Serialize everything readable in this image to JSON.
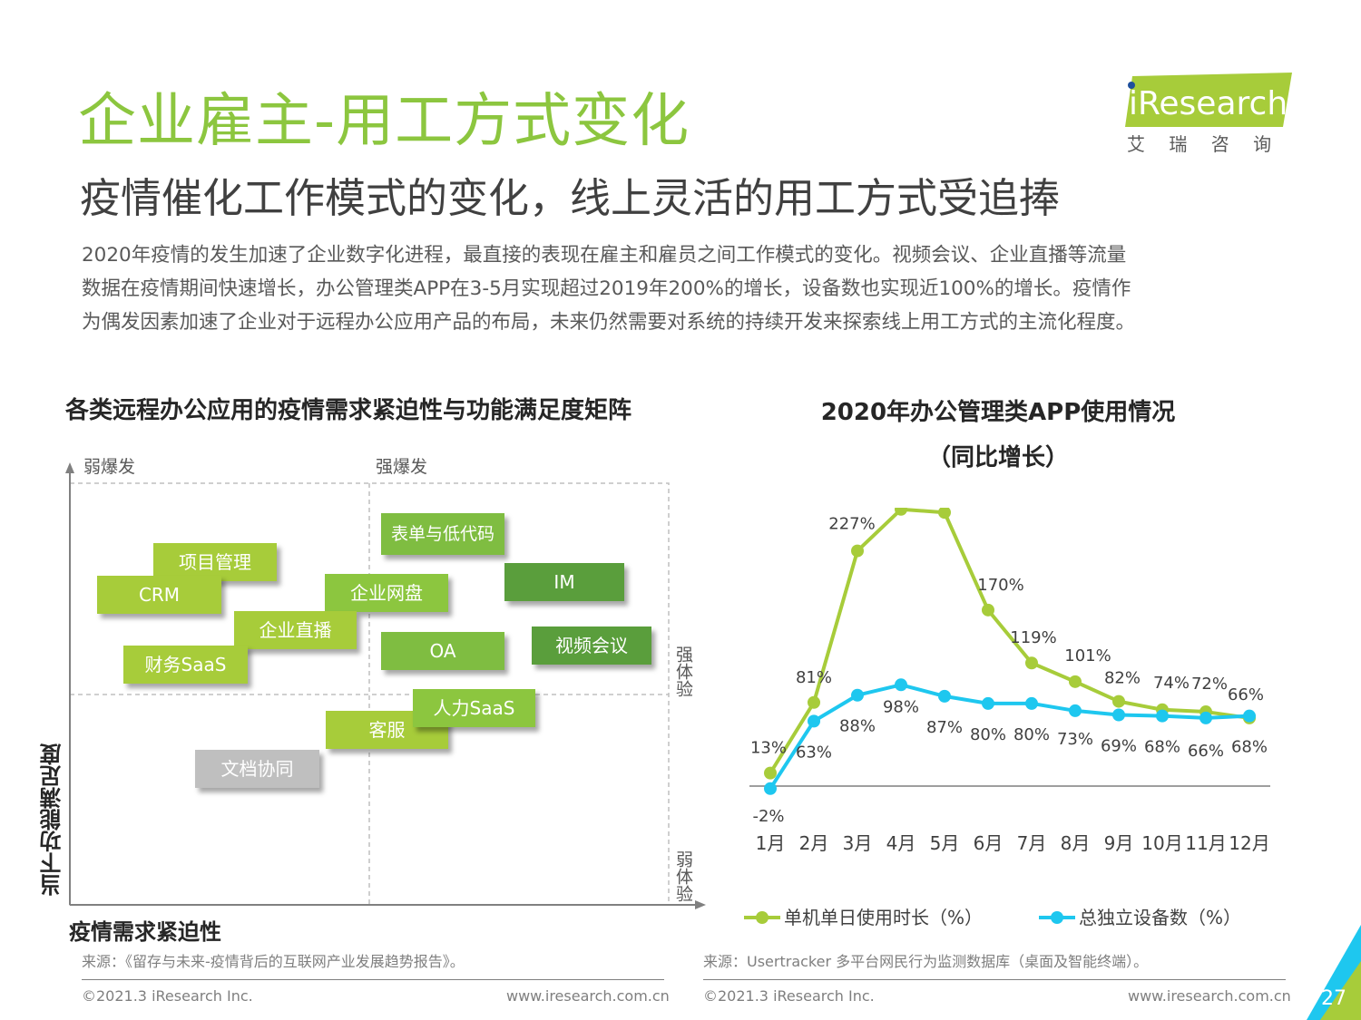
{
  "header": {
    "title": "企业雇主-用工方式变化",
    "subtitle": "疫情催化工作模式的变化，线上灵活的用工方式受追捧",
    "intro_lines": [
      "2020年疫情的发生加速了企业数字化进程，最直接的表现在雇主和雇员之间工作模式的变化。视频会议、企业直播等流量",
      "数据在疫情期间快速增长，办公管理类APP在3-5月实现超过2019年200%的增长，设备数也实现近100%的增长。疫情作",
      "为偶发因素加速了企业对于远程办公应用产品的布局，未来仍然需要对系统的持续开发来探索线上用工方式的主流化程度。"
    ]
  },
  "logo": {
    "brand": "iResearch",
    "tagline": "艾 瑞 咨 询"
  },
  "matrix": {
    "title": "各类远程办公应用的疫情需求紧迫性与功能满足度矩阵",
    "top_left_label": "弱爆发",
    "top_mid_label": "强爆发",
    "right_upper_label": "强体验",
    "right_lower_label": "弱体验",
    "y_axis_label": "当下功能满足度",
    "x_axis_label": "疫情需求紧迫性",
    "items": [
      {
        "label": "表单与低代码",
        "color": "#7fbd41"
      },
      {
        "label": "项目管理",
        "color": "#a7cc3a"
      },
      {
        "label": "IM",
        "color": "#5a9e3c"
      },
      {
        "label": "CRM",
        "color": "#a7cc3a"
      },
      {
        "label": "企业网盘",
        "color": "#8cc63f"
      },
      {
        "label": "企业直播",
        "color": "#a7cc3a"
      },
      {
        "label": "视频会议",
        "color": "#5a9e3c"
      },
      {
        "label": "OA",
        "color": "#7fbd41"
      },
      {
        "label": "财务SaaS",
        "color": "#a7cc3a"
      },
      {
        "label": "人力SaaS",
        "color": "#8cc63f"
      },
      {
        "label": "客服",
        "color": "#a7cc3a"
      },
      {
        "label": "文档协同",
        "color": "#bfbfbf"
      }
    ],
    "source": "来源：《留存与未来-疫情背后的互联网产业发展趋势报告》。"
  },
  "chart_data": {
    "type": "line",
    "title": "2020年办公管理类APP使用情况",
    "subtitle": "（同比增长）",
    "categories": [
      "1月",
      "2月",
      "3月",
      "4月",
      "5月",
      "6月",
      "7月",
      "8月",
      "9月",
      "10月",
      "11月",
      "12月"
    ],
    "series": [
      {
        "name": "单机单日使用时长（%）",
        "color": "#a7cc3a",
        "values": [
          13,
          81,
          227,
          267,
          264,
          170,
          119,
          101,
          82,
          74,
          72,
          66
        ]
      },
      {
        "name": "总独立设备数（%）",
        "color": "#1ec7ef",
        "values": [
          -2,
          63,
          88,
          98,
          87,
          80,
          80,
          73,
          69,
          68,
          66,
          68
        ]
      }
    ],
    "value_suffix": "%",
    "legend": "bottom",
    "grid": false,
    "ylim": [
      -10,
      290
    ],
    "source": "来源：Usertracker 多平台网民行为监测数据库（桌面及智能终端）。"
  },
  "footer": {
    "copyright": "©2021.3 iResearch Inc.",
    "website": "www.iresearch.com.cn",
    "page_number": "27"
  }
}
